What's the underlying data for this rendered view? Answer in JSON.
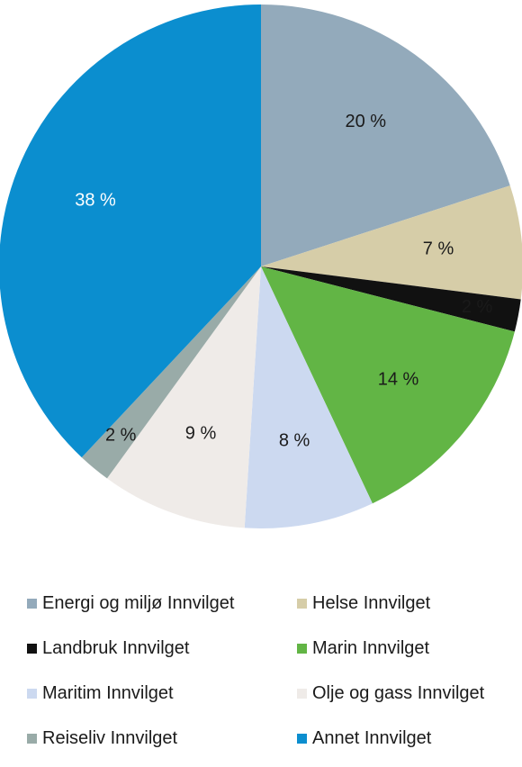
{
  "chart_data": {
    "type": "pie",
    "unit": "%",
    "slices": [
      {
        "label": "Energi og miljø Innvilget",
        "value": 20,
        "display": "20 %",
        "color": "#93aabb",
        "text_color": "#1a1a1a"
      },
      {
        "label": "Helse Innvilget",
        "value": 7,
        "display": "7 %",
        "color": "#d6cda8",
        "text_color": "#1a1a1a"
      },
      {
        "label": "Landbruk Innvilget",
        "value": 2,
        "display": "2 %",
        "color": "#111111",
        "text_color": "#1a1a1a"
      },
      {
        "label": "Marin Innvilget",
        "value": 14,
        "display": "14 %",
        "color": "#62b545",
        "text_color": "#1a1a1a"
      },
      {
        "label": "Maritim Innvilget",
        "value": 8,
        "display": "8 %",
        "color": "#ccd9f0",
        "text_color": "#1a1a1a"
      },
      {
        "label": "Olje og gass Innvilget",
        "value": 9,
        "display": "9 %",
        "color": "#efebe8",
        "text_color": "#1a1a1a"
      },
      {
        "label": "Reiseliv Innvilget",
        "value": 2,
        "display": "2 %",
        "color": "#99aba8",
        "text_color": "#1a1a1a"
      },
      {
        "label": "Annet Innvilget",
        "value": 38,
        "display": "38 %",
        "color": "#0b8ecf",
        "text_color": "#ffffff"
      }
    ],
    "legend_position": "bottom"
  }
}
